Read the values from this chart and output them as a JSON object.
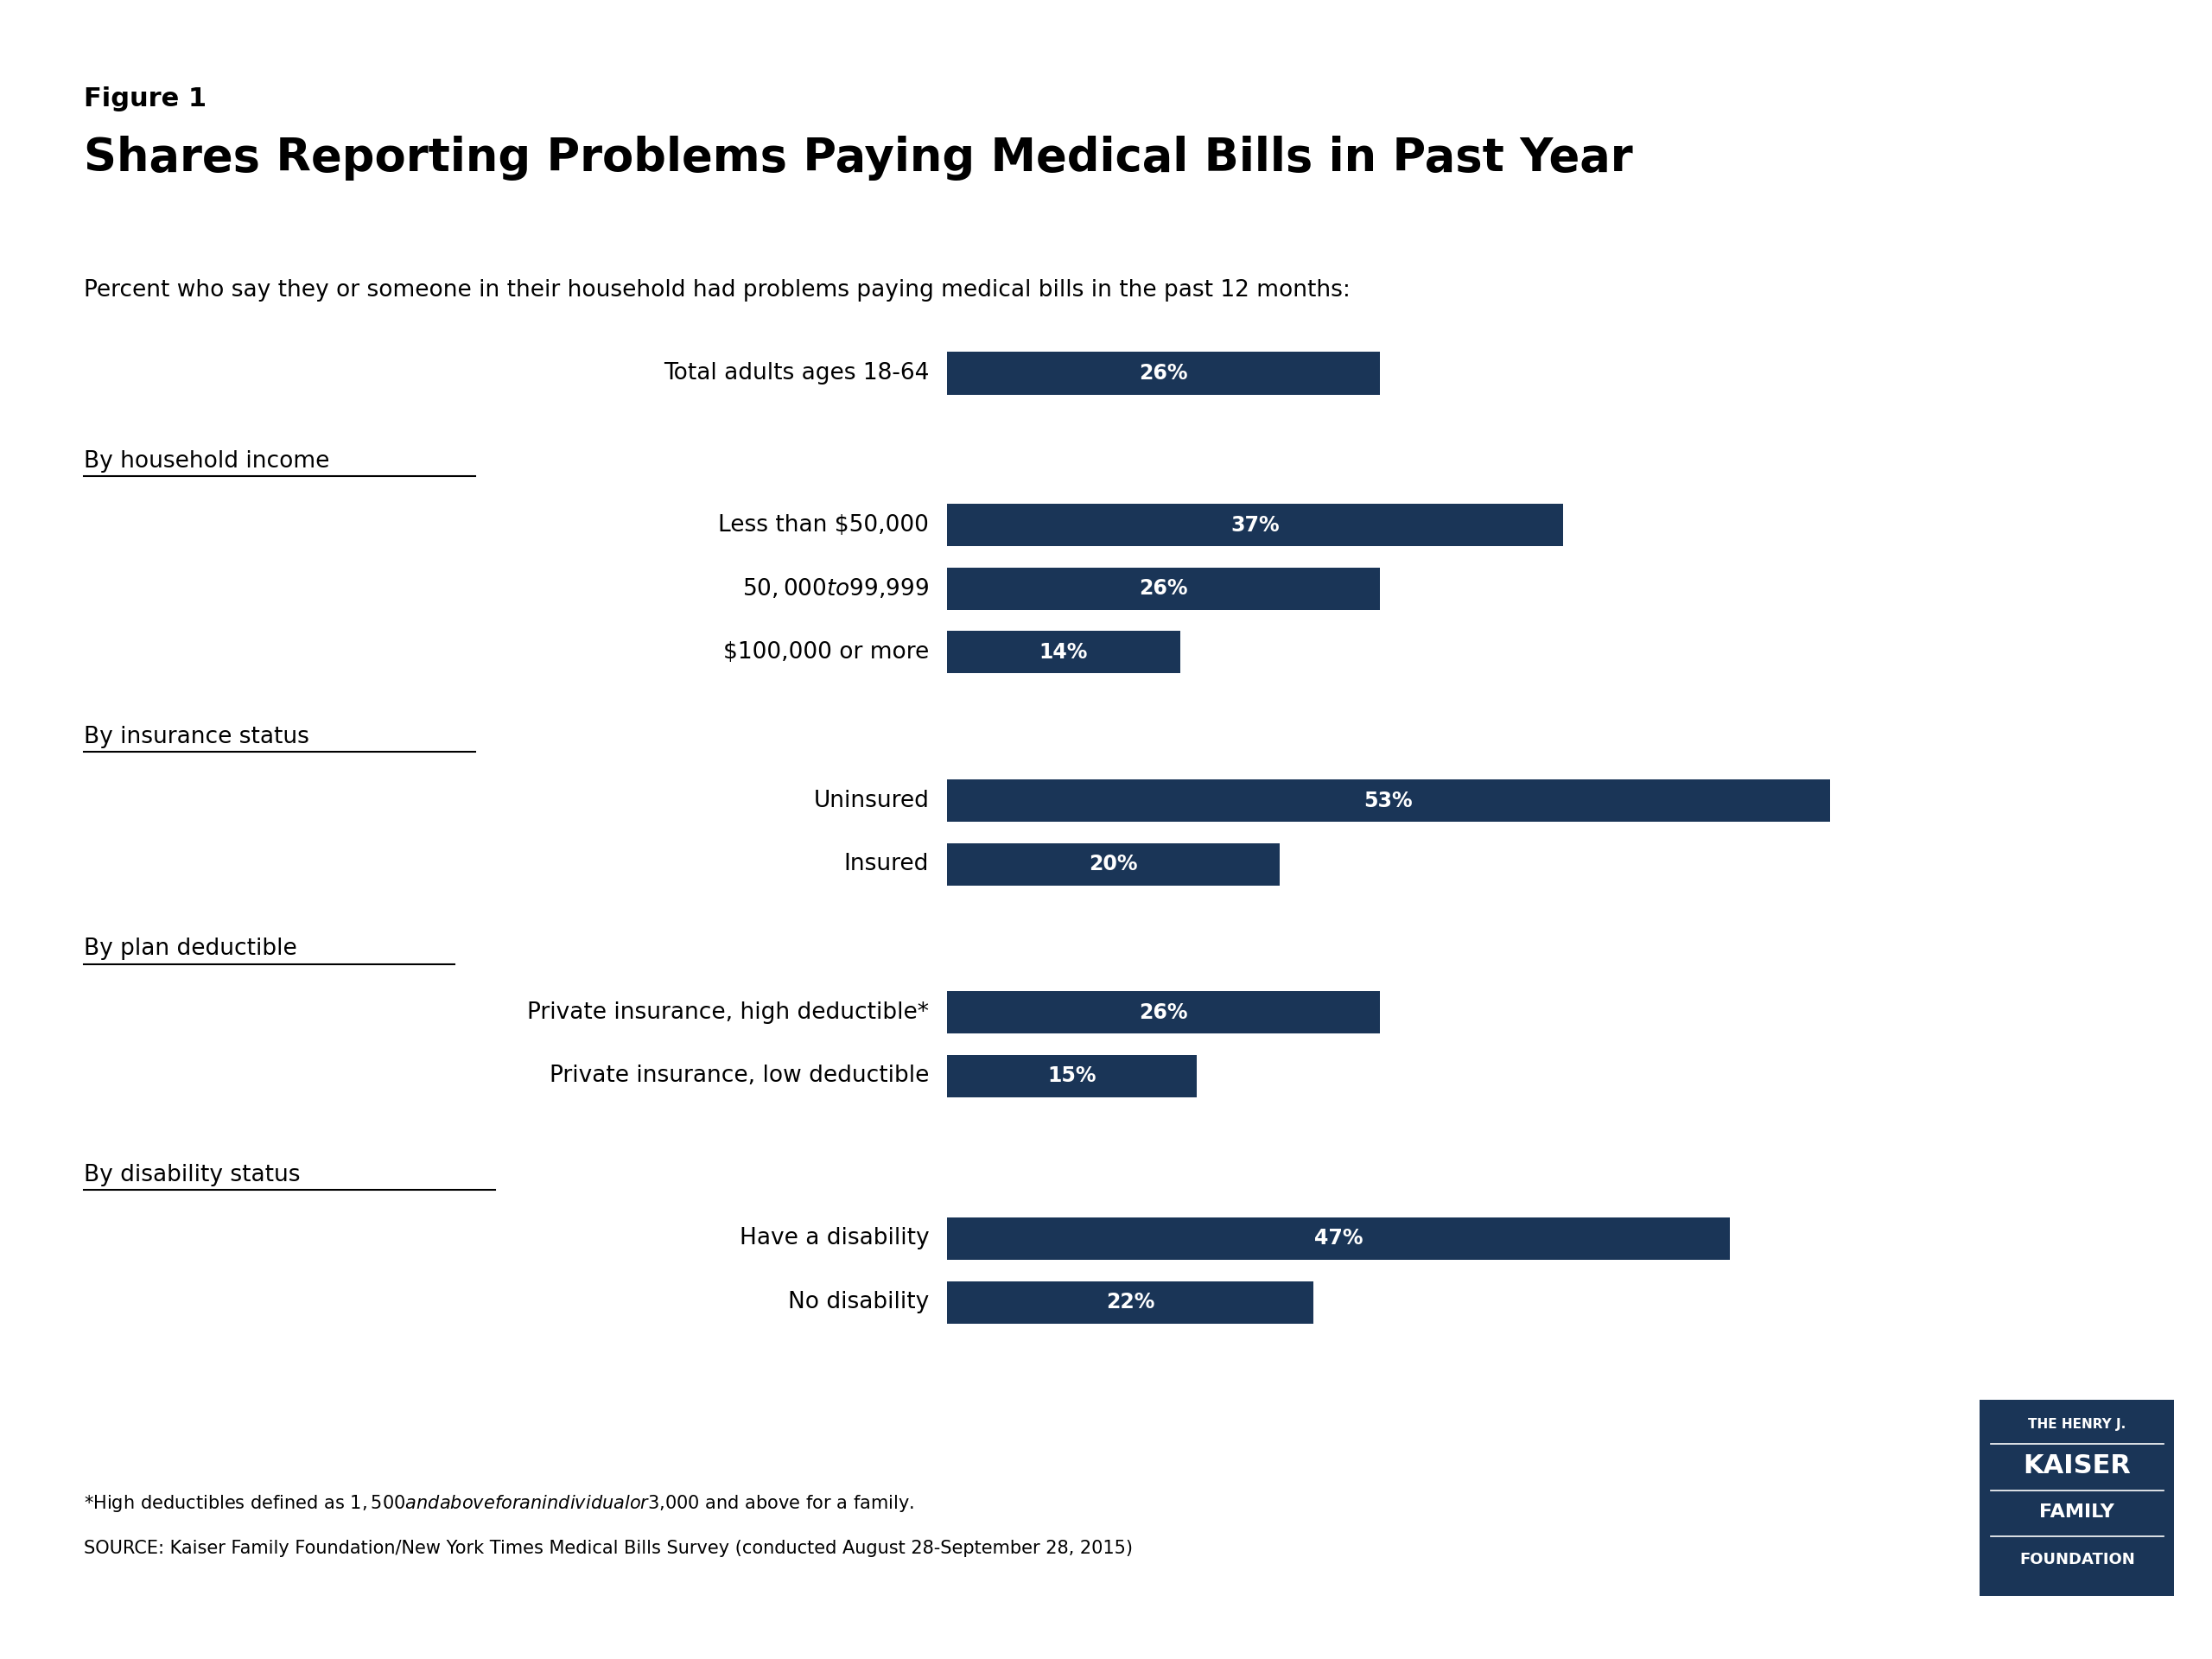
{
  "figure_label": "Figure 1",
  "title": "Shares Reporting Problems Paying Medical Bills in Past Year",
  "subtitle": "Percent who say they or someone in their household had problems paying medical bills in the past 12 months:",
  "bar_color": "#1a3557",
  "background_color": "#ffffff",
  "categories": [
    "Total adults ages 18-64",
    "Less than $50,000",
    "$50,000 to $99,999",
    "$100,000 or more",
    "Uninsured",
    "Insured",
    "Private insurance, high deductible*",
    "Private insurance, low deductible",
    "Have a disability",
    "No disability"
  ],
  "values": [
    26,
    37,
    26,
    14,
    53,
    20,
    26,
    15,
    47,
    22
  ],
  "section_texts": [
    "By household income",
    "By insurance status",
    "By plan deductible",
    "By disability status"
  ],
  "footnote1": "*High deductibles defined as $1,500 and above for an individual or $3,000 and above for a family.",
  "footnote2": "SOURCE: Kaiser Family Foundation/New York Times Medical Bills Survey (conducted August 28-September 28, 2015)",
  "max_value": 60,
  "logo_color": "#1a3557",
  "logo_text_lines": [
    "THE HENRY J.",
    "KAISER",
    "FAMILY",
    "FOUNDATION"
  ],
  "logo_fontsizes": [
    11,
    22,
    16,
    13
  ],
  "title_fontsize": 38,
  "figure_label_fontsize": 22,
  "subtitle_fontsize": 19,
  "category_fontsize": 19,
  "section_fontsize": 19,
  "bar_label_fontsize": 17,
  "footnote_fontsize": 15
}
